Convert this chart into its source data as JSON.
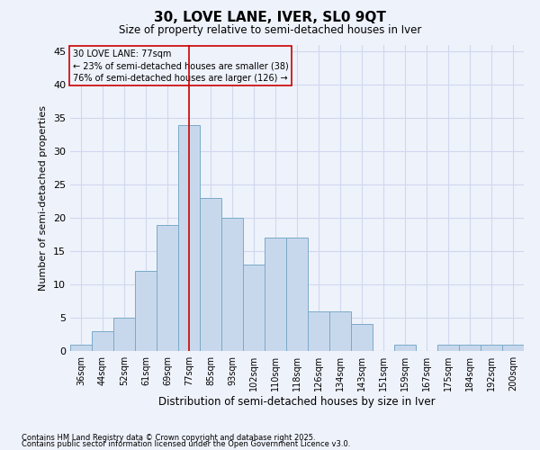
{
  "title": "30, LOVE LANE, IVER, SL0 9QT",
  "subtitle": "Size of property relative to semi-detached houses in Iver",
  "xlabel": "Distribution of semi-detached houses by size in Iver",
  "ylabel": "Number of semi-detached properties",
  "footnote1": "Contains HM Land Registry data © Crown copyright and database right 2025.",
  "footnote2": "Contains public sector information licensed under the Open Government Licence v3.0.",
  "annotation_title": "30 LOVE LANE: 77sqm",
  "annotation_line1": "← 23% of semi-detached houses are smaller (38)",
  "annotation_line2": "76% of semi-detached houses are larger (126) →",
  "property_value": 77,
  "bar_color": "#c8d8ec",
  "bar_edge_color": "#7aaac8",
  "vline_color": "#cc0000",
  "annotation_box_edge_color": "#cc0000",
  "background_color": "#eef2fb",
  "grid_color": "#d0d8ee",
  "categories": [
    "36sqm",
    "44sqm",
    "52sqm",
    "61sqm",
    "69sqm",
    "77sqm",
    "85sqm",
    "93sqm",
    "102sqm",
    "110sqm",
    "118sqm",
    "126sqm",
    "134sqm",
    "143sqm",
    "151sqm",
    "159sqm",
    "167sqm",
    "175sqm",
    "184sqm",
    "192sqm",
    "200sqm"
  ],
  "values": [
    1,
    3,
    5,
    12,
    19,
    34,
    23,
    20,
    13,
    17,
    17,
    6,
    6,
    4,
    0,
    1,
    0,
    1,
    1,
    1,
    1
  ],
  "ylim": [
    0,
    46
  ],
  "yticks": [
    0,
    5,
    10,
    15,
    20,
    25,
    30,
    35,
    40,
    45
  ]
}
